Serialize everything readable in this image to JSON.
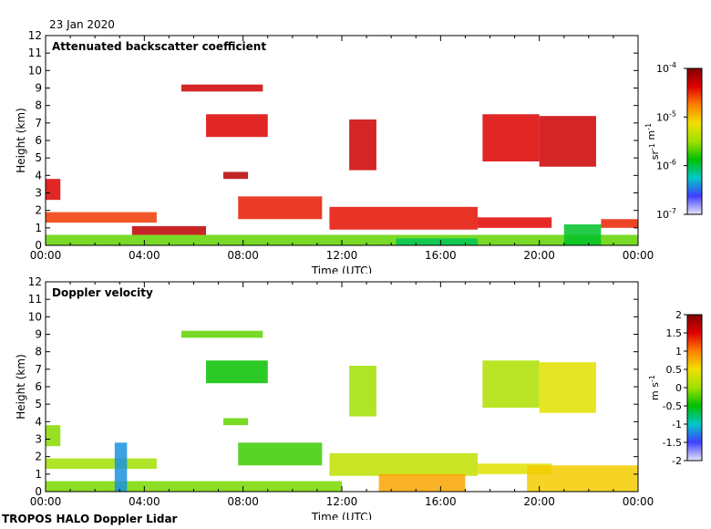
{
  "date_label": "23 Jan 2020",
  "footer": "TROPOS HALO Doppler Lidar",
  "colors": {
    "plot_bg": "#ffffff",
    "colormap": [
      "#e6e6f8",
      "#4040ff",
      "#00c8c8",
      "#00c000",
      "#a0e000",
      "#f0e000",
      "#ff8000",
      "#e00000",
      "#800000"
    ]
  },
  "chart_data": [
    {
      "type": "heatmap",
      "title": "Attenuated backscatter coefficient",
      "xlabel": "Time (UTC)",
      "ylabel": "Height (km)",
      "x_ticks": [
        "00:00",
        "04:00",
        "08:00",
        "12:00",
        "16:00",
        "20:00",
        "00:00"
      ],
      "xlim_hours": [
        0,
        24
      ],
      "ylim": [
        0,
        12
      ],
      "y_ticks": [
        0,
        1,
        2,
        3,
        4,
        5,
        6,
        7,
        8,
        9,
        10,
        11,
        12
      ],
      "colorbar": {
        "scale": "log",
        "range": [
          1e-07,
          0.0001
        ],
        "ticks": [
          {
            "base": "10",
            "exp": "-4",
            "frac": 1.0
          },
          {
            "base": "10",
            "exp": "-5",
            "frac": 0.6667
          },
          {
            "base": "10",
            "exp": "-6",
            "frac": 0.3333
          },
          {
            "base": "10",
            "exp": "-7",
            "frac": 0.0
          }
        ],
        "unit": [
          {
            "t": "sr"
          },
          {
            "t": "-1",
            "sup": true
          },
          {
            "t": " m"
          },
          {
            "t": "-1",
            "sup": true
          }
        ]
      },
      "features": [
        {
          "name": "boundary-layer",
          "t0": 0.0,
          "t1": 24.0,
          "h0": 0.0,
          "h1": 0.6,
          "value": 0.45
        },
        {
          "name": "aerosol-layer",
          "t0": 0.0,
          "t1": 4.5,
          "h0": 1.3,
          "h1": 1.9,
          "value": 0.82
        },
        {
          "name": "cloud-low-a",
          "t0": 0.0,
          "t1": 0.6,
          "h0": 2.6,
          "h1": 3.8,
          "value": 0.88
        },
        {
          "name": "cloud-low-b",
          "t0": 3.5,
          "t1": 6.5,
          "h0": 0.6,
          "h1": 1.1,
          "value": 0.92
        },
        {
          "name": "cloud-low-c",
          "t0": 7.8,
          "t1": 11.2,
          "h0": 1.5,
          "h1": 2.8,
          "value": 0.85
        },
        {
          "name": "cloud-low-d",
          "t0": 11.5,
          "t1": 17.5,
          "h0": 0.9,
          "h1": 2.2,
          "value": 0.86
        },
        {
          "name": "cloud-low-e",
          "t0": 17.5,
          "t1": 20.5,
          "h0": 1.0,
          "h1": 1.6,
          "value": 0.87
        },
        {
          "name": "cloud-low-f",
          "t0": 22.5,
          "t1": 24.0,
          "h0": 1.0,
          "h1": 1.5,
          "value": 0.84
        },
        {
          "name": "ice-cloud-high-1",
          "t0": 5.5,
          "t1": 8.8,
          "h0": 8.8,
          "h1": 9.2,
          "value": 0.9
        },
        {
          "name": "ice-cloud-high-2",
          "t0": 6.5,
          "t1": 9.0,
          "h0": 6.2,
          "h1": 7.5,
          "value": 0.88
        },
        {
          "name": "ice-cloud-high-3",
          "t0": 7.2,
          "t1": 8.2,
          "h0": 3.8,
          "h1": 4.2,
          "value": 0.93
        },
        {
          "name": "ice-cloud-high-4",
          "t0": 12.3,
          "t1": 13.4,
          "h0": 4.3,
          "h1": 7.2,
          "value": 0.9
        },
        {
          "name": "ice-cloud-high-5",
          "t0": 17.7,
          "t1": 20.0,
          "h0": 4.8,
          "h1": 7.5,
          "value": 0.88
        },
        {
          "name": "ice-cloud-high-6",
          "t0": 20.0,
          "t1": 22.3,
          "h0": 4.5,
          "h1": 7.4,
          "value": 0.9
        },
        {
          "name": "clear-air-a",
          "t0": 14.2,
          "t1": 17.5,
          "h0": 0.0,
          "h1": 0.4,
          "value": 0.32
        },
        {
          "name": "clear-air-b",
          "t0": 21.0,
          "t1": 22.5,
          "h0": 0.0,
          "h1": 1.2,
          "value": 0.35
        }
      ]
    },
    {
      "type": "heatmap",
      "title": "Doppler velocity",
      "xlabel": "Time (UTC)",
      "ylabel": "Height (km)",
      "x_ticks": [
        "00:00",
        "04:00",
        "08:00",
        "12:00",
        "16:00",
        "20:00",
        "00:00"
      ],
      "xlim_hours": [
        0,
        24
      ],
      "ylim": [
        0,
        12
      ],
      "y_ticks": [
        0,
        1,
        2,
        3,
        4,
        5,
        6,
        7,
        8,
        9,
        10,
        11,
        12
      ],
      "colorbar": {
        "scale": "linear",
        "range": [
          -2,
          2
        ],
        "ticks": [
          {
            "label": "2",
            "frac": 1.0
          },
          {
            "label": "1.5",
            "frac": 0.875
          },
          {
            "label": "1",
            "frac": 0.75
          },
          {
            "label": "0.5",
            "frac": 0.625
          },
          {
            "label": "0",
            "frac": 0.5
          },
          {
            "label": "-0.5",
            "frac": 0.375
          },
          {
            "label": "-1",
            "frac": 0.25
          },
          {
            "label": "-1.5",
            "frac": 0.125
          },
          {
            "label": "-2",
            "frac": 0.0
          }
        ],
        "unit": [
          {
            "t": "m s"
          },
          {
            "t": "-1",
            "sup": true
          }
        ]
      },
      "features": [
        {
          "name": "boundary-layer",
          "t0": 0.0,
          "t1": 12.0,
          "h0": 0.0,
          "h1": 0.6,
          "value": 0.47
        },
        {
          "name": "aerosol-layer",
          "t0": 0.0,
          "t1": 4.5,
          "h0": 1.3,
          "h1": 1.9,
          "value": 0.5
        },
        {
          "name": "updraft-plume",
          "t0": 2.8,
          "t1": 3.3,
          "h0": 0.0,
          "h1": 2.8,
          "value": 0.2
        },
        {
          "name": "cloud-low-a",
          "t0": 0.0,
          "t1": 0.6,
          "h0": 2.6,
          "h1": 3.8,
          "value": 0.48
        },
        {
          "name": "cloud-low-c",
          "t0": 7.8,
          "t1": 11.2,
          "h0": 1.5,
          "h1": 2.8,
          "value": 0.42
        },
        {
          "name": "cloud-low-d",
          "t0": 11.5,
          "t1": 17.5,
          "h0": 0.9,
          "h1": 2.2,
          "value": 0.55
        },
        {
          "name": "cloud-low-e",
          "t0": 17.5,
          "t1": 20.5,
          "h0": 1.0,
          "h1": 1.6,
          "value": 0.6
        },
        {
          "name": "turbulence-a",
          "t0": 13.5,
          "t1": 17.0,
          "h0": 0.0,
          "h1": 1.0,
          "value": 0.7
        },
        {
          "name": "turbulence-b",
          "t0": 19.5,
          "t1": 24.0,
          "h0": 0.0,
          "h1": 1.5,
          "value": 0.65
        },
        {
          "name": "ice-cloud-high-1",
          "t0": 5.5,
          "t1": 8.8,
          "h0": 8.8,
          "h1": 9.2,
          "value": 0.45
        },
        {
          "name": "ice-cloud-high-2",
          "t0": 6.5,
          "t1": 9.0,
          "h0": 6.2,
          "h1": 7.5,
          "value": 0.38
        },
        {
          "name": "ice-cloud-high-3",
          "t0": 7.2,
          "t1": 8.2,
          "h0": 3.8,
          "h1": 4.2,
          "value": 0.45
        },
        {
          "name": "ice-cloud-high-4",
          "t0": 12.3,
          "t1": 13.4,
          "h0": 4.3,
          "h1": 7.2,
          "value": 0.5
        },
        {
          "name": "ice-cloud-high-5",
          "t0": 17.7,
          "t1": 20.0,
          "h0": 4.8,
          "h1": 7.5,
          "value": 0.52
        },
        {
          "name": "ice-cloud-high-6",
          "t0": 20.0,
          "t1": 22.3,
          "h0": 4.5,
          "h1": 7.4,
          "value": 0.6
        }
      ]
    }
  ]
}
